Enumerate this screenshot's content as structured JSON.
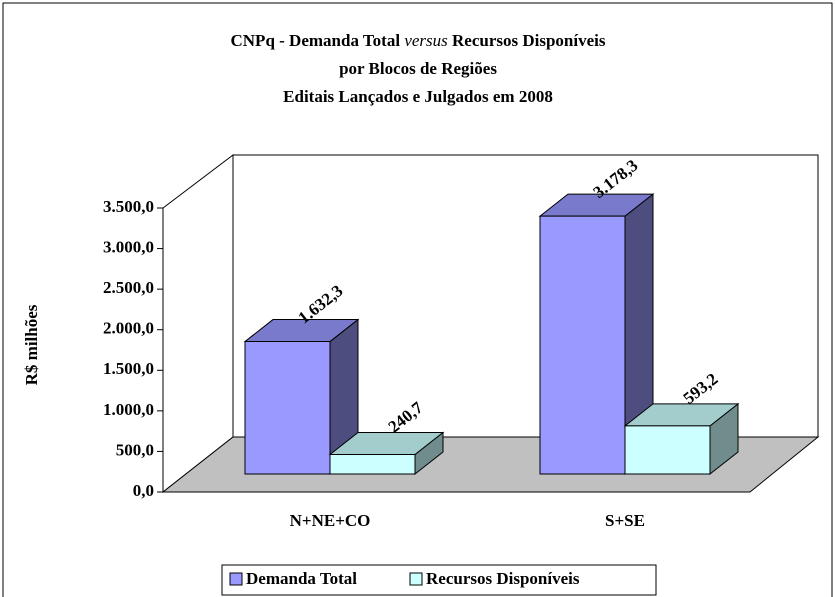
{
  "chart_data": {
    "type": "bar3d",
    "title": [
      [
        "CNPq - Demanda Total",
        "versus",
        "Recursos Disponíveis"
      ],
      "por Blocos de Regiões",
      "Editais Lançados e Julgados em 2008"
    ],
    "y_label": "R$ milhões",
    "categories": [
      "N+NE+CO",
      "S+SE"
    ],
    "series": [
      {
        "name": "Demanda Total",
        "color": "#9999ff",
        "values": [
          1632.3,
          3178.3
        ],
        "value_labels": [
          "1.632,3",
          "3.178,3"
        ]
      },
      {
        "name": "Recursos Disponíveis",
        "color": "#ccffff",
        "values": [
          240.7,
          593.2
        ],
        "value_labels": [
          "240,7",
          "593,2"
        ]
      }
    ],
    "ylim": [
      0,
      3500
    ],
    "yticks": [
      {
        "value": 0,
        "label": "0,0"
      },
      {
        "value": 500,
        "label": "500,0"
      },
      {
        "value": 1000,
        "label": "1.000,0"
      },
      {
        "value": 1500,
        "label": "1.500,0"
      },
      {
        "value": 2000,
        "label": "2.000,0"
      },
      {
        "value": 2500,
        "label": "2.500,0"
      },
      {
        "value": 3000,
        "label": "3.000,0"
      },
      {
        "value": 3500,
        "label": "3.500,0"
      }
    ],
    "grid": false,
    "legend": "bottom"
  }
}
